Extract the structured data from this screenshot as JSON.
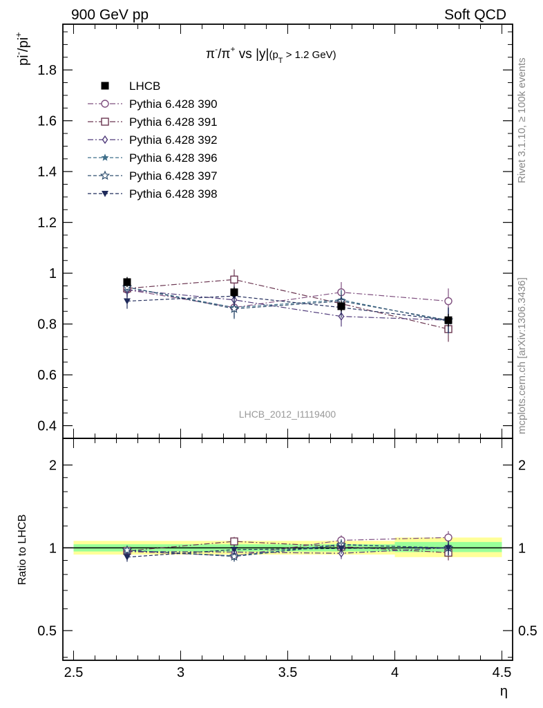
{
  "header": {
    "left": "900 GeV pp",
    "right": "Soft QCD"
  },
  "side_labels": {
    "rivet": "Rivet 3.1.10, ≥ 100k events",
    "mcplots": "mcplots.cern.ch [arXiv:1306.3436]"
  },
  "chart_data": [
    {
      "type": "scatter",
      "title_parts": [
        "π",
        "-",
        "/π",
        "+",
        " vs |y|",
        "(p",
        "T",
        " > 1.2 GeV)"
      ],
      "ylabel_parts": [
        "pi",
        "-",
        "/pi",
        "+"
      ],
      "watermark": "LHCB_2012_I1119400",
      "xlim": [
        2.45,
        4.55
      ],
      "ylim": [
        0.35,
        1.98
      ],
      "yticks": [
        0.4,
        0.6,
        0.8,
        1,
        1.2,
        1.4,
        1.6,
        1.8
      ],
      "yticklabels": [
        "0.4",
        "0.6",
        "0.8",
        "1",
        "1.2",
        "1.4",
        "1.6",
        "1.8"
      ],
      "grid": false,
      "legend": "top-left",
      "x": [
        2.75,
        3.25,
        3.75,
        4.25
      ],
      "data_series": {
        "name": "LHCB",
        "values": [
          0.965,
          0.925,
          0.87,
          0.815
        ],
        "errors": [
          0.02,
          0.02,
          0.02,
          0.025
        ]
      },
      "series": [
        {
          "name": "Pythia 6.428 390",
          "values": [
            0.935,
            0.865,
            0.925,
            0.89
          ],
          "errors": [
            0.03,
            0.04,
            0.04,
            0.05
          ],
          "color": "#7e4e7e",
          "marker": "circle-open",
          "dash": "dashdot"
        },
        {
          "name": "Pythia 6.428 391",
          "values": [
            0.94,
            0.975,
            0.88,
            0.78
          ],
          "errors": [
            0.03,
            0.04,
            0.04,
            0.05
          ],
          "color": "#6a3550",
          "marker": "square-open",
          "dash": "dashdot"
        },
        {
          "name": "Pythia 6.428 392",
          "values": [
            0.935,
            0.895,
            0.83,
            0.815
          ],
          "errors": [
            0.03,
            0.04,
            0.04,
            0.05
          ],
          "color": "#4f3a7a",
          "marker": "diamond-open",
          "dash": "dashdot"
        },
        {
          "name": "Pythia 6.428 396",
          "values": [
            0.945,
            0.865,
            0.895,
            0.81
          ],
          "errors": [
            0.03,
            0.04,
            0.04,
            0.05
          ],
          "color": "#3f6f8a",
          "marker": "star-filled",
          "dash": "dashed"
        },
        {
          "name": "Pythia 6.428 397",
          "values": [
            0.945,
            0.86,
            0.89,
            0.815
          ],
          "errors": [
            0.03,
            0.04,
            0.04,
            0.05
          ],
          "color": "#2f4f6f",
          "marker": "star-open",
          "dash": "dashed"
        },
        {
          "name": "Pythia 6.428 398",
          "values": [
            0.89,
            0.91,
            0.865,
            0.815
          ],
          "errors": [
            0.03,
            0.04,
            0.04,
            0.05
          ],
          "color": "#1f2a5a",
          "marker": "triangle-down",
          "dash": "dashed"
        }
      ]
    },
    {
      "type": "scatter",
      "ylabel": "Ratio to LHCB",
      "xlabel": "η",
      "xlim": [
        2.45,
        4.55
      ],
      "xticks": [
        2.5,
        3,
        3.5,
        4,
        4.5
      ],
      "xticklabels": [
        "2.5",
        "3",
        "3.5",
        "4",
        "4.5"
      ],
      "ylim": [
        0.39,
        2.5
      ],
      "log_y": true,
      "yticks": [
        0.5,
        1,
        2
      ],
      "yticklabels": [
        "0.5",
        "1",
        "2"
      ],
      "grid": false,
      "x": [
        2.75,
        3.25,
        3.75,
        4.25
      ],
      "bands": {
        "yellow_color": "#ffff99",
        "green_color": "#99ff99",
        "bins": [
          {
            "range": [
              2.5,
              3.0
            ],
            "yellow": [
              0.945,
              1.06
            ],
            "green": [
              0.97,
              1.03
            ]
          },
          {
            "range": [
              3.0,
              3.5
            ],
            "yellow": [
              0.945,
              1.06
            ],
            "green": [
              0.97,
              1.03
            ]
          },
          {
            "range": [
              3.5,
              4.0
            ],
            "yellow": [
              0.945,
              1.06
            ],
            "green": [
              0.97,
              1.03
            ]
          },
          {
            "range": [
              4.0,
              4.5
            ],
            "yellow": [
              0.925,
              1.09
            ],
            "green": [
              0.965,
              1.05
            ]
          }
        ]
      },
      "series": [
        {
          "name": "Pythia 6.428 390",
          "values": [
            0.97,
            0.935,
            1.065,
            1.09
          ],
          "errors": [
            0.035,
            0.04,
            0.045,
            0.06
          ]
        },
        {
          "name": "Pythia 6.428 391",
          "values": [
            0.975,
            1.055,
            1.01,
            0.96
          ],
          "errors": [
            0.035,
            0.04,
            0.045,
            0.06
          ]
        },
        {
          "name": "Pythia 6.428 392",
          "values": [
            0.97,
            0.965,
            0.955,
            1.0
          ],
          "errors": [
            0.035,
            0.04,
            0.045,
            0.06
          ]
        },
        {
          "name": "Pythia 6.428 396",
          "values": [
            0.98,
            0.935,
            1.03,
            0.995
          ],
          "errors": [
            0.035,
            0.04,
            0.045,
            0.06
          ]
        },
        {
          "name": "Pythia 6.428 397",
          "values": [
            0.98,
            0.93,
            1.025,
            1.0
          ],
          "errors": [
            0.035,
            0.04,
            0.045,
            0.06
          ]
        },
        {
          "name": "Pythia 6.428 398",
          "values": [
            0.925,
            0.985,
            0.995,
            1.0
          ],
          "errors": [
            0.035,
            0.04,
            0.045,
            0.06
          ]
        }
      ]
    }
  ]
}
